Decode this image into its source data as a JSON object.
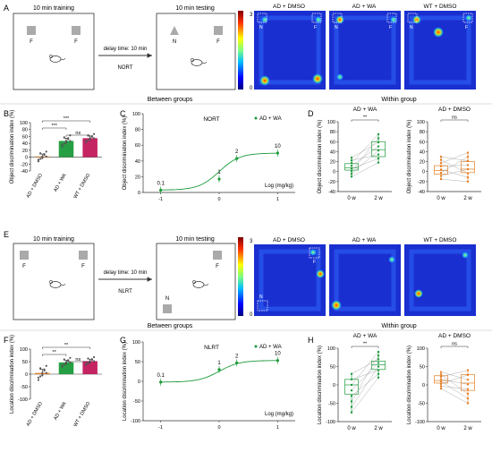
{
  "panel_letters": [
    "A",
    "B",
    "C",
    "D",
    "E",
    "F",
    "G",
    "H"
  ],
  "nort": {
    "training_title": "10 min training",
    "testing_title": "10 min testing",
    "delay_label": "delay time: 10 min",
    "task_label": "NORT",
    "object_f": "F",
    "object_n": "N",
    "heatmap_titles": [
      "AD + DMSO",
      "AD + WA",
      "WT + DMSO"
    ],
    "colorbar_top": "3",
    "colorbar_bottom": "0"
  },
  "nlrt": {
    "training_title": "10 min training",
    "testing_title": "10 min testing",
    "delay_label": "delay time: 10 min",
    "task_label": "NLRT",
    "object_f": "F",
    "object_n": "N",
    "heatmap_titles": [
      "AD + DMSO",
      "AD + WA",
      "WT + DMSO"
    ],
    "colorbar_top": "3",
    "colorbar_bottom": "0"
  },
  "section_labels": {
    "between_top": "Between groups",
    "within_top": "Within group",
    "between_bottom": "Between groups",
    "within_bottom": "Within group"
  },
  "colors": {
    "ad_dmso": "#e67e22",
    "ad_wa": "#1a9a3a",
    "wt_dmso": "#c2185b",
    "dose_line": "#1a9a3a",
    "arrow": "#333333"
  },
  "chart_data": [
    {
      "id": "B",
      "type": "bar",
      "ylabel": "Object discrimination index (%)",
      "ylim": [
        -40,
        100
      ],
      "yticks": [
        "100",
        "80",
        "60",
        "40",
        "20",
        "0",
        "-20",
        "-40"
      ],
      "categories": [
        "AD + DMSO",
        "AD + WA",
        "WT + DMSO"
      ],
      "values": [
        2,
        47,
        55
      ],
      "errors": [
        7,
        8,
        6
      ],
      "significance": [
        "***",
        "***",
        "ns"
      ]
    },
    {
      "id": "C",
      "type": "line",
      "title": "NORT",
      "legend": "AD + WA",
      "xlabel": "Log (mg/kg)",
      "ylabel": "Object discrimination index (%)",
      "ylim": [
        0,
        100
      ],
      "yticks": [
        "0",
        "20",
        "40",
        "60",
        "80",
        "100"
      ],
      "xticks": [
        "-1",
        "0",
        "1"
      ],
      "x": [
        -1,
        0,
        0.301,
        1
      ],
      "y": [
        3,
        17,
        43,
        50
      ],
      "point_labels": [
        "0.1",
        "1",
        "2",
        "10"
      ]
    },
    {
      "id": "D1",
      "type": "box",
      "title": "AD + WA",
      "ylabel": "Object discrimination index (%)",
      "ylim": [
        -40,
        100
      ],
      "yticks": [
        "100",
        "80",
        "60",
        "40",
        "20",
        "0",
        "-20",
        "-40"
      ],
      "categories": [
        "0 w",
        "2 w"
      ],
      "boxes": [
        [
          -10,
          3,
          8,
          16,
          28
        ],
        [
          18,
          30,
          44,
          60,
          75
        ]
      ],
      "significance": "**"
    },
    {
      "id": "D2",
      "type": "box",
      "title": "AD + DMSO",
      "ylabel": "Object discrimination index (%)",
      "ylim": [
        -40,
        100
      ],
      "yticks": [
        "100",
        "80",
        "60",
        "40",
        "20",
        "0",
        "-20",
        "-40"
      ],
      "categories": [
        "0 w",
        "2 w"
      ],
      "boxes": [
        [
          -15,
          -5,
          2,
          12,
          30
        ],
        [
          -20,
          -2,
          5,
          20,
          38
        ]
      ],
      "significance": "ns"
    },
    {
      "id": "F",
      "type": "bar",
      "ylabel": "Location discrimination index (%)",
      "ylim": [
        -100,
        100
      ],
      "yticks": [
        "100",
        "50",
        "0",
        "-50",
        "-100"
      ],
      "categories": [
        "AD + DMSO",
        "AD + WA",
        "WT + DMSO"
      ],
      "values": [
        5,
        47,
        52
      ],
      "errors": [
        14,
        9,
        8
      ],
      "significance": [
        "**",
        "**",
        "ns"
      ]
    },
    {
      "id": "G",
      "type": "line",
      "title": "NLRT",
      "legend": "AD + WA",
      "xlabel": "Log (mg/kg)",
      "ylabel": "Location discrimination index (%)",
      "ylim": [
        -100,
        100
      ],
      "yticks": [
        "-100",
        "-50",
        "0",
        "50",
        "100"
      ],
      "xticks": [
        "-1",
        "0",
        "1"
      ],
      "x": [
        -1,
        0,
        0.301,
        1
      ],
      "y": [
        -2,
        30,
        47,
        53
      ],
      "point_labels": [
        "0.1",
        "1",
        "2",
        "10"
      ]
    },
    {
      "id": "H1",
      "type": "box",
      "title": "AD + WA",
      "ylabel": "Location discrimination index (%)",
      "ylim": [
        -100,
        100
      ],
      "yticks": [
        "100",
        "50",
        "0",
        "-50",
        "-100"
      ],
      "categories": [
        "0 w",
        "2 w"
      ],
      "boxes": [
        [
          -75,
          -25,
          0,
          15,
          30
        ],
        [
          20,
          42,
          55,
          65,
          90
        ]
      ],
      "significance": "**"
    },
    {
      "id": "H2",
      "type": "box",
      "title": "AD + DMSO",
      "ylabel": "Location discrimination index (%)",
      "ylim": [
        -100,
        100
      ],
      "yticks": [
        "100",
        "50",
        "0",
        "-50",
        "-100"
      ],
      "categories": [
        "0 w",
        "2 w"
      ],
      "boxes": [
        [
          -10,
          5,
          12,
          25,
          35
        ],
        [
          -50,
          -15,
          5,
          28,
          40
        ]
      ],
      "significance": "ns"
    }
  ]
}
